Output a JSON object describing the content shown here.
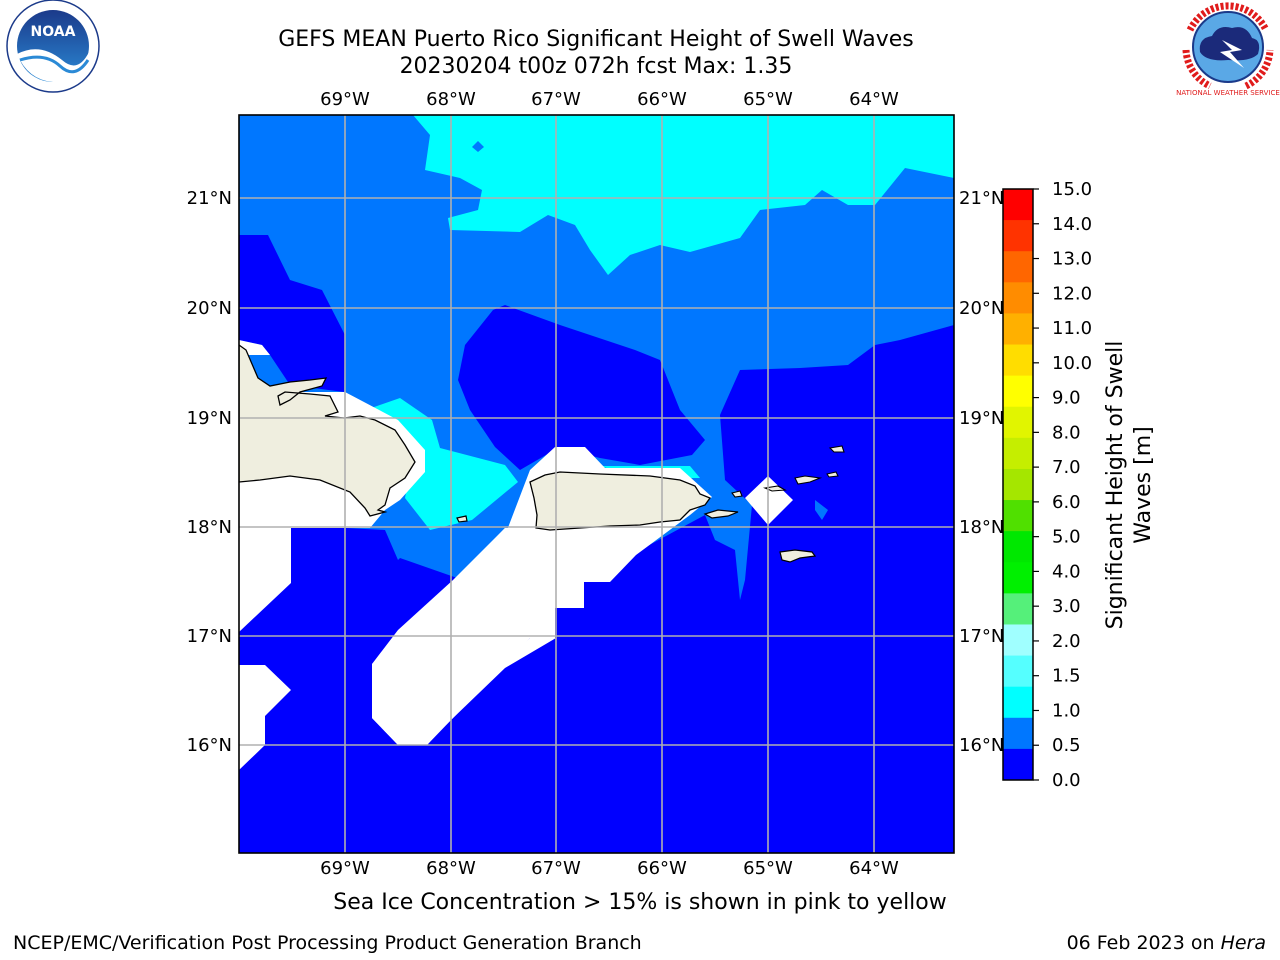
{
  "title": {
    "line1": "GEFS MEAN Puerto Rico Significant Height of Swell Waves",
    "line2": "20230204 t00z 072h fcst   Max: 1.35"
  },
  "map": {
    "lon_labels": [
      "69°W",
      "68°W",
      "67°W",
      "66°W",
      "65°W",
      "64°W"
    ],
    "lat_labels": [
      "21°N",
      "20°N",
      "19°N",
      "18°N",
      "17°N",
      "16°N"
    ]
  },
  "colorbar": {
    "label_line1": "Significant Height of Swell",
    "label_line2": "Waves [m]",
    "ticks": [
      "15.0",
      "14.0",
      "13.0",
      "12.0",
      "11.0",
      "10.0",
      "9.0",
      "8.0",
      "7.0",
      "6.0",
      "5.0",
      "4.0",
      "3.0",
      "2.0",
      "1.5",
      "1.0",
      "0.5",
      "0.0"
    ],
    "colors": [
      "#ff0000",
      "#ff3300",
      "#ff6600",
      "#ff8c00",
      "#ffb000",
      "#ffdd00",
      "#ffff00",
      "#e1f500",
      "#c5ee00",
      "#a5e600",
      "#50e000",
      "#00e800",
      "#00f000",
      "#55f07a",
      "#a0ffff",
      "#55ffff",
      "#00ffff",
      "#0077ff",
      "#0000ff"
    ]
  },
  "legend_colors": {
    "land": "#efeedf",
    "missing": "#ffffff",
    "band_0_0_5": "#0000ff",
    "band_0_5_1_0": "#0077ff",
    "band_1_0_1_5": "#00ffff"
  },
  "logos": {
    "noaa": "NOAA",
    "nws": "NATIONAL WEATHER SERVICE"
  },
  "caption": "Sea Ice Concentration > 15% is shown in pink to yellow",
  "footer": {
    "left": "NCEP/EMC/Verification Post Processing Product Generation Branch",
    "right_date": "06 Feb 2023 on ",
    "right_host": "Hera"
  }
}
